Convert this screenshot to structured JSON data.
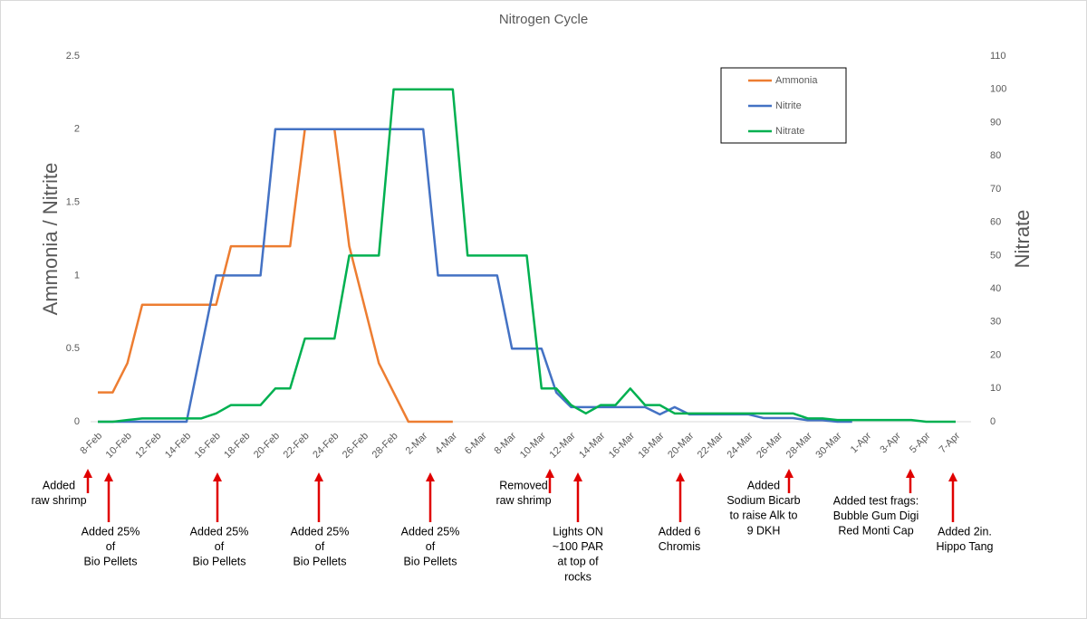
{
  "chart_data": {
    "type": "line",
    "title": "Nitrogen Cycle",
    "y_label": "Ammonia / Nitrite",
    "y2_label": "Nitrate",
    "categories": [
      "8-Feb",
      null,
      "10-Feb",
      null,
      "12-Feb",
      null,
      "14-Feb",
      null,
      "16-Feb",
      null,
      "18-Feb",
      null,
      "20-Feb",
      null,
      "22-Feb",
      null,
      "24-Feb",
      null,
      "26-Feb",
      null,
      "28-Feb",
      null,
      "2-Mar",
      null,
      "4-Mar",
      null,
      "6-Mar",
      null,
      "8-Mar",
      null,
      "10-Mar",
      null,
      "12-Mar",
      null,
      "14-Mar",
      null,
      "16-Mar",
      null,
      "18-Mar",
      null,
      "20-Mar",
      null,
      "22-Mar",
      null,
      "24-Mar",
      null,
      "26-Mar",
      null,
      "28-Mar",
      null,
      "30-Mar",
      null,
      "1-Apr",
      null,
      "3-Apr",
      null,
      "5-Apr",
      null,
      "7-Apr"
    ],
    "series": [
      {
        "name": "Ammonia",
        "color": "#ed7d31",
        "values": [
          0.2,
          0.2,
          0.4,
          0.8,
          0.8,
          0.8,
          0.8,
          0.8,
          0.8,
          1.2,
          1.2,
          1.2,
          1.2,
          1.2,
          2,
          2,
          2,
          1.2,
          0.8,
          0.4,
          0.2,
          0,
          0,
          0,
          0,
          null,
          null,
          null,
          null,
          null,
          null,
          null,
          null,
          null,
          null,
          null,
          null,
          null,
          null,
          null,
          null,
          null,
          null,
          null,
          null,
          null,
          null,
          null,
          null,
          null,
          null,
          null,
          null,
          null,
          null,
          null,
          null,
          null,
          null
        ]
      },
      {
        "name": "Nitrite",
        "color": "#4472c4",
        "values": [
          0,
          0,
          0,
          0,
          0,
          0,
          0,
          0.5,
          1,
          1,
          1,
          1,
          2,
          2,
          2,
          2,
          2,
          2,
          2,
          2,
          2,
          2,
          2,
          1,
          1,
          1,
          1,
          1,
          0.5,
          0.5,
          0.5,
          0.2,
          0.1,
          0.1,
          0.1,
          0.1,
          0.1,
          0.1,
          0.05,
          0.1,
          0.05,
          0.05,
          0.05,
          0.05,
          0.05,
          0.025,
          0.025,
          0.025,
          0.01,
          0.01,
          0,
          0,
          null,
          null,
          null,
          null,
          null,
          null,
          null
        ]
      },
      {
        "name": "Nitrate",
        "color": "#00b050",
        "axis": "y2",
        "values": [
          0,
          0,
          0.5,
          1,
          1,
          1,
          1,
          1,
          2.5,
          5,
          5,
          5,
          10,
          10,
          25,
          25,
          25,
          50,
          50,
          50,
          100,
          100,
          100,
          100,
          100,
          50,
          50,
          50,
          50,
          50,
          10,
          10,
          5,
          2.5,
          5,
          5,
          10,
          5,
          5,
          2.5,
          2.5,
          2.5,
          2.5,
          2.5,
          2.5,
          2.5,
          2.5,
          2.5,
          1,
          1,
          0.5,
          0.5,
          0.5,
          0.5,
          0.5,
          0.5,
          0,
          0,
          0
        ]
      }
    ],
    "ylim": [
      0,
      2.5
    ],
    "yticks": [
      0,
      0.5,
      1,
      1.5,
      2,
      2.5
    ],
    "y2lim": [
      0,
      110
    ],
    "y2ticks": [
      0,
      10,
      20,
      30,
      40,
      50,
      60,
      70,
      80,
      90,
      100,
      110
    ],
    "grid": false,
    "legend": "top-right",
    "annotations": [
      {
        "lines": [
          "Added",
          "raw shrimp"
        ]
      },
      {
        "lines": [
          "Added 25%",
          "of",
          "Bio Pellets"
        ]
      },
      {
        "lines": [
          "Added 25%",
          "of",
          "Bio Pellets"
        ]
      },
      {
        "lines": [
          "Added 25%",
          "of",
          "Bio Pellets"
        ]
      },
      {
        "lines": [
          "Added 25%",
          "of",
          "Bio Pellets"
        ]
      },
      {
        "lines": [
          "Removed",
          "raw shrimp"
        ]
      },
      {
        "lines": [
          "Lights ON",
          "~100 PAR",
          "at top of",
          "rocks"
        ]
      },
      {
        "lines": [
          "Added 6",
          "Chromis"
        ]
      },
      {
        "lines": [
          "Added",
          "Sodium Bicarb",
          "to raise Alk to",
          "9 DKH"
        ]
      },
      {
        "lines": [
          "Added test frags:",
          "Bubble Gum Digi",
          "Red Monti Cap"
        ]
      },
      {
        "lines": [
          "Added 2in.",
          "Hippo Tang"
        ]
      }
    ]
  }
}
